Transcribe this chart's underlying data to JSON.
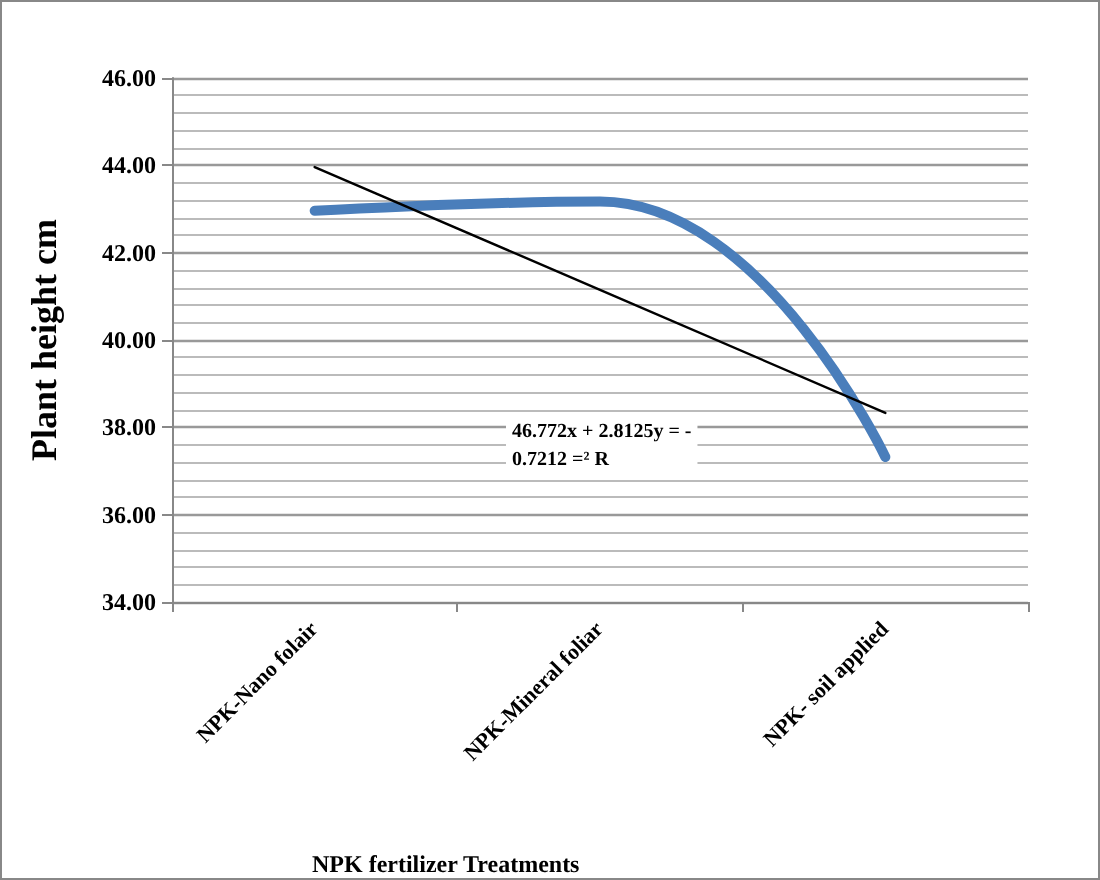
{
  "chart_data": {
    "type": "line",
    "ylabel": "Plant height cm",
    "xlabel": "NPK fertilizer Treatments",
    "categories": [
      "NPK-Nano folair",
      "NPK-Mineral foliar",
      "NPK- soil applied"
    ],
    "series": [
      {
        "color": "#4a7ebb",
        "values": [
          42.96,
          43.17,
          37.32
        ],
        "marker": "none",
        "line_style": "solid"
      },
      {
        "color": "#000000",
        "values": [
          43.96,
          41.15,
          38.33
        ],
        "marker": "none",
        "line_style": "solid"
      }
    ],
    "ylim": [
      34,
      46
    ],
    "yticks": [
      {
        "value": 34,
        "label": "34.00"
      },
      {
        "value": 36,
        "label": "36.00"
      },
      {
        "value": 38,
        "label": "38.00"
      },
      {
        "value": 40,
        "label": "40.00"
      },
      {
        "value": 42,
        "label": "42.00"
      },
      {
        "value": 44,
        "label": "44.00"
      },
      {
        "value": 46,
        "label": "46.00"
      }
    ],
    "grid": "y",
    "annotations": [
      "46.772x + 2.8125y = -\n0.7212 =² R"
    ]
  }
}
